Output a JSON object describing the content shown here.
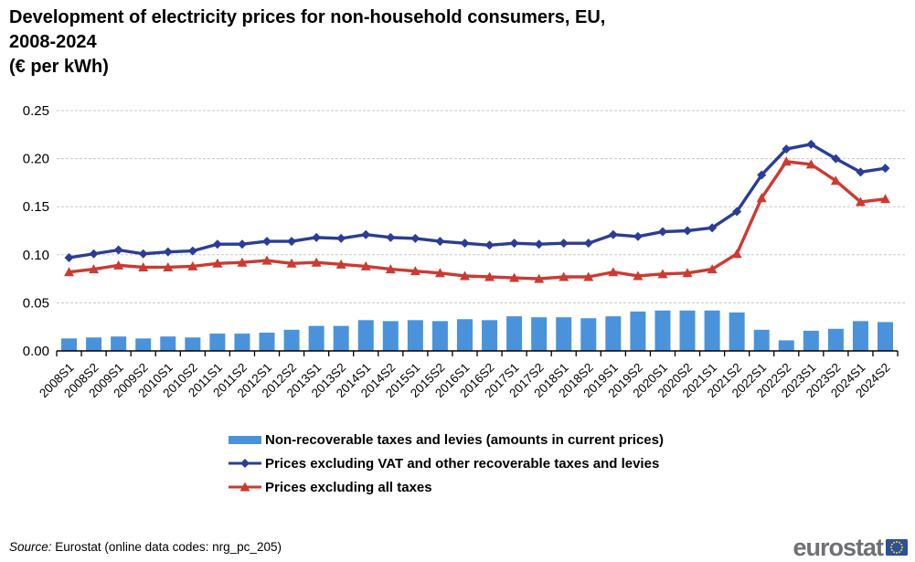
{
  "header": {
    "line1": "Development of electricity prices for non-household consumers, EU,",
    "line2": "2008-2024",
    "line3": "(€ per kWh)"
  },
  "colors": {
    "bar": "#4A93DB",
    "line_vat": "#2B3D94",
    "line_tax": "#CC3A31",
    "grid": "#C8C8C8",
    "axis": "#000000",
    "logo_gray": "#6E7074",
    "logo_blue": "#2E4E9E",
    "star_yellow": "#FFDD00"
  },
  "chart_data": {
    "type": "bar",
    "title": "Development of electricity prices for non-household consumers, EU, 2008-2024 (€ per kWh)",
    "xlabel": "",
    "ylabel": "€ per kWh",
    "ylim": [
      0,
      0.25
    ],
    "yticks": [
      0,
      0.05,
      0.1,
      0.15,
      0.2,
      0.25
    ],
    "grid": "horizontal-dashed",
    "legend_position": "bottom",
    "categories": [
      "2008S1",
      "2008S2",
      "2009S1",
      "2009S2",
      "2010S1",
      "2010S2",
      "2011S1",
      "2011S2",
      "2012S1",
      "2012S2",
      "2013S1",
      "2013S2",
      "2014S1",
      "2014S2",
      "2015S1",
      "2015S2",
      "2016S1",
      "2016S2",
      "2017S1",
      "2017S2",
      "2018S1",
      "2018S2",
      "2019S1",
      "2019S2",
      "2020S1",
      "2020S2",
      "2021S1",
      "2021S2",
      "2022S1",
      "2022S2",
      "2023S1",
      "2023S2",
      "2024S1",
      "2024S2"
    ],
    "series": [
      {
        "name": "Non-recoverable taxes and levies (amounts in current prices)",
        "type": "bar",
        "color": "#4A93DB",
        "values": [
          0.013,
          0.014,
          0.015,
          0.013,
          0.015,
          0.014,
          0.018,
          0.018,
          0.019,
          0.022,
          0.026,
          0.026,
          0.032,
          0.031,
          0.032,
          0.031,
          0.033,
          0.032,
          0.036,
          0.035,
          0.035,
          0.034,
          0.036,
          0.041,
          0.042,
          0.042,
          0.042,
          0.04,
          0.022,
          0.011,
          0.021,
          0.023,
          0.031,
          0.03
        ]
      },
      {
        "name": "Prices excluding VAT and other recoverable taxes and levies",
        "type": "line",
        "marker": "diamond",
        "color": "#2B3D94",
        "values": [
          0.097,
          0.101,
          0.105,
          0.101,
          0.103,
          0.104,
          0.111,
          0.111,
          0.114,
          0.114,
          0.118,
          0.117,
          0.121,
          0.118,
          0.117,
          0.114,
          0.112,
          0.11,
          0.112,
          0.111,
          0.112,
          0.112,
          0.121,
          0.119,
          0.124,
          0.125,
          0.128,
          0.145,
          0.183,
          0.21,
          0.215,
          0.2,
          0.186,
          0.19
        ]
      },
      {
        "name": "Prices excluding all taxes",
        "type": "line",
        "marker": "triangle",
        "color": "#CC3A31",
        "values": [
          0.082,
          0.085,
          0.089,
          0.087,
          0.087,
          0.088,
          0.091,
          0.092,
          0.094,
          0.091,
          0.092,
          0.09,
          0.088,
          0.085,
          0.083,
          0.081,
          0.078,
          0.077,
          0.076,
          0.075,
          0.077,
          0.077,
          0.082,
          0.078,
          0.08,
          0.081,
          0.085,
          0.101,
          0.159,
          0.197,
          0.194,
          0.177,
          0.155,
          0.158
        ]
      }
    ]
  },
  "footer": {
    "source_label": "Source:",
    "source_text": "Eurostat (online data codes: nrg_pc_205)",
    "logo_text": "eurostat"
  }
}
